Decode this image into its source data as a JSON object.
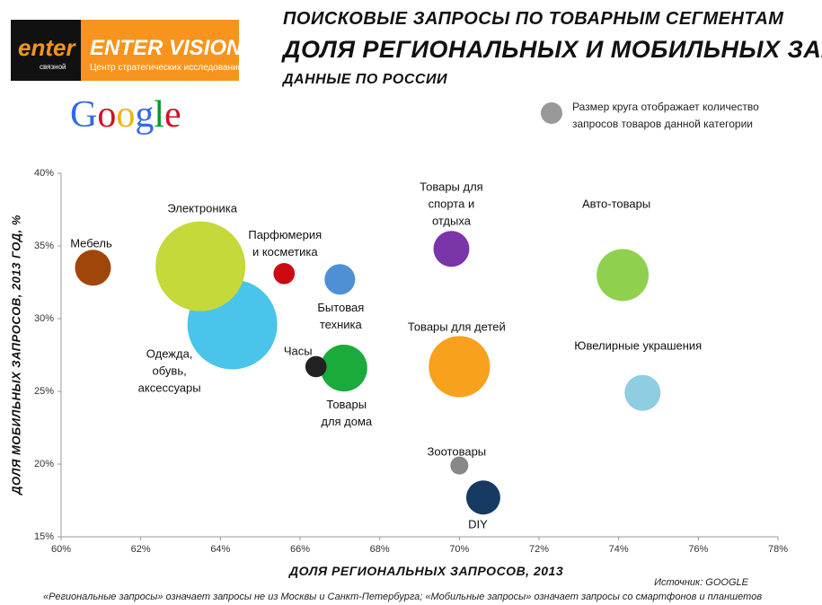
{
  "logo": {
    "brand": "enter",
    "sub_brand": "связной",
    "name": "ENTER VISION",
    "tagline": "Центр стратегических исследований"
  },
  "google": "Google",
  "chart_data": {
    "type": "bubble",
    "title": "ПОИСКОВЫЕ ЗАПРОСЫ ПО ТОВАРНЫМ СЕГМЕНТАМ",
    "subtitle": "ДОЛЯ РЕГИОНАЛЬНЫХ И МОБИЛЬНЫХ ЗАПРОСОВ",
    "subtitle2": "ДАННЫЕ ПО РОССИИ",
    "size_note": "Размер круга отображает количество\nзапросов товаров данной категории",
    "x_label": "ДОЛЯ РЕГИОНАЛЬНЫХ ЗАПРОСОВ, 2013",
    "y_label": "ДОЛЯ МОБИЛЬНЫХ ЗАПРОСОВ, 2013 ГОД, %",
    "source": "Источник: GOOGLE",
    "footnote": "«Региональные запросы» означает запросы не из Москвы и Санкт-Петербурга; «Мобильные запросы» означает запросы со смартфонов и планшетов",
    "categories": [
      "Мебель",
      "Одежда,\nобувь,\nаксессуары",
      "Электроника",
      "Парфюмерия\nи косметика",
      "Бытовая\nтехника",
      "Товары\nдля дома",
      "Часы",
      "Товары для\nспорта и\nотдыха",
      "Товары для детей",
      "Зоотовары",
      "DIY",
      "Авто-товары",
      "Ювелирные украшения"
    ],
    "x": [
      60.8,
      64.3,
      63.5,
      65.6,
      67.0,
      67.1,
      66.4,
      69.8,
      70.0,
      70.0,
      70.6,
      74.1,
      74.6
    ],
    "values": [
      33.5,
      29.6,
      33.6,
      33.1,
      32.7,
      26.6,
      26.7,
      34.8,
      26.7,
      19.9,
      17.7,
      33.0,
      24.9
    ],
    "sizes": [
      4,
      25,
      25,
      1.4,
      2.9,
      6.8,
      1.4,
      4,
      11.6,
      1,
      3.6,
      8.4,
      4
    ],
    "colors": [
      "#a0460a",
      "#4ac4ea",
      "#c5d93a",
      "#cc0a14",
      "#4f8fd6",
      "#1aab3c",
      "#222222",
      "#7a35a8",
      "#f7a11d",
      "#888888",
      "#173a63",
      "#8fd14f",
      "#8fcde0"
    ],
    "xlim": [
      60,
      78
    ],
    "ylim": [
      15,
      40
    ],
    "xticks": [
      {
        "value": 60,
        "label": "60%"
      },
      {
        "value": 62,
        "label": "62%"
      },
      {
        "value": 64,
        "label": "64%"
      },
      {
        "value": 66,
        "label": "66%"
      },
      {
        "value": 68,
        "label": "68%"
      },
      {
        "value": 70,
        "label": "70%"
      },
      {
        "value": 72,
        "label": "72%"
      },
      {
        "value": 74,
        "label": "74%"
      },
      {
        "value": 76,
        "label": "76%"
      },
      {
        "value": 78,
        "label": "78%"
      }
    ],
    "yticks": [
      {
        "value": 15,
        "label": "15%"
      },
      {
        "value": 20,
        "label": "20%"
      },
      {
        "value": 25,
        "label": "25%"
      },
      {
        "value": 30,
        "label": "30%"
      },
      {
        "value": 35,
        "label": "35%"
      },
      {
        "value": 40,
        "label": "40%"
      }
    ]
  }
}
